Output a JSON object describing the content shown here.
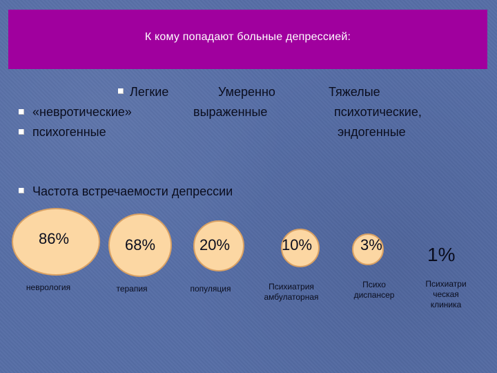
{
  "title": "К кому попадают больные депрессией:",
  "columns": {
    "light": [
      "Легкие",
      "«невротические»",
      "психогенные"
    ],
    "moderate": [
      "Умеренно",
      "выраженные"
    ],
    "severe": [
      "Тяжелые",
      "психотические,",
      "эндогенные"
    ]
  },
  "frequency_heading": "Частота встречаемости депрессии",
  "circles": [
    {
      "value": "86%",
      "label_lines": [
        "неврология"
      ],
      "fraction": 0.86
    },
    {
      "value": "68%",
      "label_lines": [
        "терапия"
      ],
      "fraction": 0.68
    },
    {
      "value": "20%",
      "label_lines": [
        "популяция"
      ],
      "fraction": 0.2
    },
    {
      "value": "10%",
      "label_lines": [
        "Психиатрия",
        "амбулаторная"
      ],
      "fraction": 0.1
    },
    {
      "value": "3%",
      "label_lines": [
        "Психо",
        "диспансер"
      ],
      "fraction": 0.03
    },
    {
      "value": "1%",
      "label_lines": [
        "Психиатри",
        "ческая",
        "клиника"
      ],
      "fraction": 0.01
    }
  ],
  "colors": {
    "background": "#566ea6",
    "title_bar": "#a0009e",
    "circle_fill": "#fcd7a3",
    "circle_border": "#d9a164"
  }
}
